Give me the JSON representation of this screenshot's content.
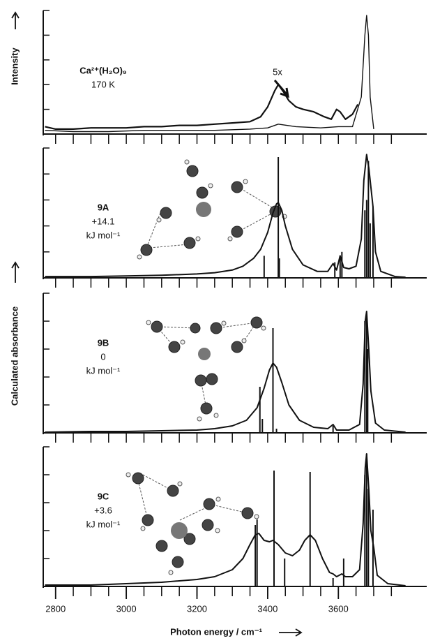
{
  "chart_data": [
    {
      "type": "line",
      "ylabel": "Intensity",
      "annotations": [
        "Ca²⁺(H₂O)₉",
        "170 K",
        "5x"
      ],
      "xlim": [
        2765,
        3850
      ],
      "ylim": [
        0,
        1
      ],
      "yticks": [
        0,
        0.2,
        0.4,
        0.6,
        0.8,
        1.0
      ],
      "series": [
        {
          "color": "#111111",
          "width": 2.2,
          "x": [
            2770,
            2800,
            2850,
            2900,
            2950,
            3000,
            3050,
            3100,
            3150,
            3200,
            3250,
            3300,
            3350,
            3380,
            3400,
            3420,
            3430,
            3445,
            3460,
            3480,
            3500,
            3530,
            3560,
            3580,
            3595,
            3605,
            3620,
            3640,
            3655
          ],
          "values": [
            0.06,
            0.04,
            0.04,
            0.05,
            0.05,
            0.05,
            0.06,
            0.06,
            0.07,
            0.07,
            0.08,
            0.09,
            0.1,
            0.14,
            0.22,
            0.35,
            0.4,
            0.34,
            0.27,
            0.22,
            0.2,
            0.18,
            0.14,
            0.12,
            0.2,
            0.18,
            0.12,
            0.16,
            0.24
          ]
        },
        {
          "color": "#111111",
          "width": 1.4,
          "x": [
            2770,
            2850,
            2950,
            3050,
            3150,
            3250,
            3350,
            3400,
            3430,
            3480,
            3550,
            3600,
            3640,
            3665,
            3675,
            3680,
            3685,
            3690,
            3700
          ],
          "values": [
            0.03,
            0.02,
            0.02,
            0.03,
            0.03,
            0.03,
            0.04,
            0.05,
            0.08,
            0.06,
            0.05,
            0.06,
            0.06,
            0.3,
            0.8,
            0.96,
            0.8,
            0.3,
            0.04
          ]
        }
      ]
    },
    {
      "type": "line",
      "annotations": [
        "9A",
        "+14.1",
        "kJ mol⁻¹"
      ],
      "xlim": [
        2765,
        3850
      ],
      "ylim": [
        0,
        1
      ],
      "yticks": [
        0,
        0.2,
        0.4,
        0.6,
        0.8,
        1.0
      ],
      "series": [
        {
          "color": "#111111",
          "width": 2,
          "x": [
            2770,
            2900,
            3000,
            3100,
            3200,
            3250,
            3300,
            3330,
            3360,
            3380,
            3400,
            3415,
            3425,
            3430,
            3440,
            3450,
            3470,
            3500,
            3540,
            3570,
            3585,
            3595,
            3605,
            3615,
            3630,
            3650,
            3665,
            3672,
            3680,
            3686,
            3692,
            3698,
            3705,
            3720,
            3760,
            3790
          ],
          "values": [
            0.01,
            0.01,
            0.015,
            0.02,
            0.03,
            0.04,
            0.06,
            0.09,
            0.15,
            0.22,
            0.35,
            0.5,
            0.57,
            0.58,
            0.52,
            0.4,
            0.22,
            0.1,
            0.05,
            0.05,
            0.11,
            0.06,
            0.17,
            0.08,
            0.07,
            0.09,
            0.3,
            0.75,
            0.95,
            0.85,
            0.7,
            0.55,
            0.2,
            0.05,
            0.01,
            0.005
          ]
        }
      ],
      "sticks": {
        "color": "#111111",
        "x": [
          3390,
          3430,
          3433,
          3590,
          3605,
          3610,
          3675,
          3680,
          3685,
          3690,
          3698
        ],
        "values": [
          0.17,
          0.93,
          0.15,
          0.12,
          0.17,
          0.2,
          0.52,
          0.6,
          0.9,
          0.42,
          0.55
        ]
      }
    },
    {
      "type": "line",
      "ylabel": "Calculated absorbance",
      "annotations": [
        "9B",
        "0",
        "kJ mol⁻¹"
      ],
      "xlim": [
        2765,
        3850
      ],
      "ylim": [
        0,
        1
      ],
      "yticks": [
        0,
        0.2,
        0.4,
        0.6,
        0.8,
        1.0
      ],
      "series": [
        {
          "color": "#111111",
          "width": 2,
          "x": [
            2770,
            2900,
            3000,
            3100,
            3200,
            3250,
            3300,
            3340,
            3370,
            3390,
            3405,
            3415,
            3425,
            3440,
            3460,
            3490,
            3530,
            3570,
            3585,
            3595,
            3630,
            3660,
            3670,
            3676,
            3680,
            3686,
            3692,
            3705,
            3730,
            3790
          ],
          "values": [
            0.005,
            0.01,
            0.01,
            0.015,
            0.02,
            0.03,
            0.05,
            0.09,
            0.18,
            0.32,
            0.45,
            0.5,
            0.47,
            0.36,
            0.2,
            0.09,
            0.04,
            0.03,
            0.06,
            0.02,
            0.02,
            0.06,
            0.35,
            0.8,
            0.87,
            0.6,
            0.3,
            0.07,
            0.02,
            0.005
          ]
        }
      ],
      "sticks": {
        "color": "#111111",
        "x": [
          3378,
          3385,
          3415,
          3425,
          3585,
          3675,
          3680,
          3683
        ],
        "values": [
          0.33,
          0.1,
          0.75,
          0.03,
          0.05,
          0.8,
          0.85,
          0.6
        ]
      }
    },
    {
      "type": "line",
      "annotations": [
        "9C",
        "+3.6",
        "kJ mol⁻¹"
      ],
      "xlabel": "Photon energy / cm⁻¹",
      "xlim": [
        2765,
        3850
      ],
      "ylim": [
        0,
        1
      ],
      "yticks": [
        0,
        0.2,
        0.4,
        0.6,
        0.8,
        1.0
      ],
      "xticks": [
        2800,
        3000,
        3200,
        3400,
        3600
      ],
      "xminorticks": [
        2800,
        2850,
        2900,
        2950,
        3000,
        3050,
        3100,
        3150,
        3200,
        3250,
        3300,
        3350,
        3400,
        3450,
        3500,
        3550,
        3600,
        3650,
        3700,
        3750
      ],
      "series": [
        {
          "color": "#111111",
          "width": 2,
          "x": [
            2770,
            2900,
            3000,
            3100,
            3200,
            3250,
            3300,
            3330,
            3350,
            3365,
            3375,
            3390,
            3405,
            3415,
            3430,
            3450,
            3470,
            3490,
            3505,
            3520,
            3535,
            3555,
            3575,
            3585,
            3595,
            3610,
            3620,
            3640,
            3660,
            3670,
            3676,
            3680,
            3686,
            3692,
            3700,
            3710,
            3740,
            3790
          ],
          "values": [
            0.01,
            0.01,
            0.02,
            0.03,
            0.05,
            0.07,
            0.12,
            0.2,
            0.3,
            0.37,
            0.38,
            0.33,
            0.32,
            0.33,
            0.3,
            0.24,
            0.22,
            0.26,
            0.33,
            0.37,
            0.33,
            0.2,
            0.1,
            0.09,
            0.07,
            0.09,
            0.07,
            0.07,
            0.12,
            0.45,
            0.85,
            0.95,
            0.7,
            0.4,
            0.28,
            0.08,
            0.02,
            0.005
          ]
        }
      ],
      "sticks": {
        "color": "#111111",
        "x": [
          3365,
          3370,
          3418,
          3448,
          3520,
          3585,
          3615,
          3675,
          3680,
          3685,
          3698
        ],
        "values": [
          0.44,
          0.48,
          0.83,
          0.2,
          0.82,
          0.06,
          0.2,
          0.8,
          0.95,
          0.7,
          0.55
        ]
      }
    }
  ]
}
